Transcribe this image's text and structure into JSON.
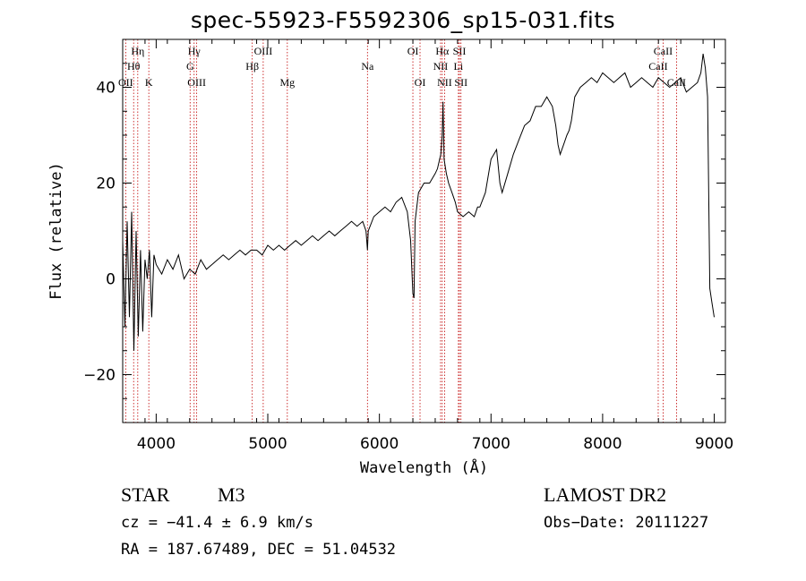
{
  "header": {
    "title": "spec-55923-F5592306_sp15-031.fits"
  },
  "info": {
    "obj_class": "STAR",
    "obj_subclass": "M3",
    "survey": "LAMOST  DR2",
    "cz": "cz = −41.4 ± 6.9 km/s",
    "obs_date": "Obs−Date: 20111227",
    "radec": "RA = 187.67489, DEC =  51.04532"
  },
  "chart_data": {
    "type": "line",
    "title": "spec-55923-F5592306_sp15-031.fits",
    "xlabel": "Wavelength (Å)",
    "ylabel": "Flux (relative)",
    "xlim": [
      3700,
      9100
    ],
    "ylim": [
      -30,
      50
    ],
    "xticks": [
      4000,
      5000,
      6000,
      7000,
      8000,
      9000
    ],
    "yticks": [
      -20,
      0,
      20,
      40
    ],
    "line_color": "#000000",
    "marker_color": "#c00000",
    "series": [
      {
        "x": [
          3700,
          3720,
          3740,
          3760,
          3780,
          3800,
          3820,
          3840,
          3860,
          3880,
          3900,
          3920,
          3940,
          3960,
          3980,
          4000,
          4050,
          4100,
          4150,
          4200,
          4250,
          4300,
          4350,
          4400,
          4450,
          4500,
          4550,
          4600,
          4650,
          4700,
          4750,
          4800,
          4850,
          4900,
          4950,
          5000,
          5050,
          5100,
          5150,
          5200,
          5250,
          5300,
          5350,
          5400,
          5450,
          5500,
          5550,
          5600,
          5650,
          5700,
          5750,
          5800,
          5850,
          5880,
          5893,
          5900,
          5950,
          6000,
          6050,
          6100,
          6150,
          6200,
          6250,
          6280,
          6300,
          6310,
          6320,
          6350,
          6400,
          6450,
          6500,
          6520,
          6540,
          6550,
          6563,
          6570,
          6580,
          6600,
          6620,
          6650,
          6680,
          6700,
          6750,
          6800,
          6850,
          6880,
          6900,
          6950,
          7000,
          7050,
          7080,
          7100,
          7150,
          7200,
          7250,
          7300,
          7350,
          7400,
          7450,
          7500,
          7550,
          7580,
          7600,
          7620,
          7650,
          7680,
          7700,
          7720,
          7750,
          7800,
          7850,
          7900,
          7950,
          8000,
          8050,
          8100,
          8150,
          8200,
          8250,
          8300,
          8350,
          8400,
          8450,
          8500,
          8550,
          8600,
          8650,
          8700,
          8750,
          8800,
          8850,
          8880,
          8900,
          8920,
          8940,
          8960,
          8980,
          9000
        ],
        "y": [
          8,
          -10,
          12,
          -8,
          14,
          -15,
          10,
          -12,
          6,
          -11,
          4,
          0,
          6,
          -8,
          5,
          3,
          1,
          4,
          2,
          5,
          0,
          2,
          1,
          4,
          2,
          3,
          4,
          5,
          4,
          5,
          6,
          5,
          6,
          6,
          5,
          7,
          6,
          7,
          6,
          7,
          8,
          7,
          8,
          9,
          8,
          9,
          10,
          9,
          10,
          11,
          12,
          11,
          12,
          10,
          6,
          10,
          13,
          14,
          15,
          14,
          16,
          17,
          14,
          8,
          -3,
          -4,
          12,
          18,
          20,
          20,
          22,
          23,
          25,
          26,
          30,
          37,
          25,
          22,
          20,
          18,
          16,
          14,
          13,
          14,
          13,
          15,
          15,
          18,
          25,
          27,
          20,
          18,
          22,
          26,
          29,
          32,
          33,
          36,
          36,
          38,
          36,
          32,
          28,
          26,
          28,
          30,
          31,
          33,
          38,
          40,
          41,
          42,
          41,
          43,
          42,
          41,
          42,
          43,
          40,
          41,
          42,
          41,
          40,
          42,
          41,
          40,
          41,
          42,
          39,
          40,
          41,
          43,
          47,
          44,
          38,
          -2,
          -5,
          -8
        ]
      }
    ],
    "line_markers": [
      {
        "name": "OII",
        "x": 3727,
        "row": 3
      },
      {
        "name": "Hθ",
        "x": 3798,
        "row": 2
      },
      {
        "name": "Hη",
        "x": 3835,
        "row": 1
      },
      {
        "name": "K",
        "x": 3934,
        "row": 3
      },
      {
        "name": "Hγ",
        "x": 4340,
        "row": 1
      },
      {
        "name": "G",
        "x": 4304,
        "row": 2
      },
      {
        "name": "OIII",
        "x": 4363,
        "row": 3
      },
      {
        "name": "Hβ",
        "x": 4861,
        "row": 2
      },
      {
        "name": "OIII",
        "x": 4959,
        "row": 1
      },
      {
        "name": "Mg",
        "x": 5175,
        "row": 3
      },
      {
        "name": "Na",
        "x": 5893,
        "row": 2
      },
      {
        "name": "OI",
        "x": 6300,
        "row": 1
      },
      {
        "name": "OI",
        "x": 6364,
        "row": 3
      },
      {
        "name": "Hα",
        "x": 6563,
        "row": 1
      },
      {
        "name": "NII",
        "x": 6548,
        "row": 2
      },
      {
        "name": "NII",
        "x": 6584,
        "row": 3
      },
      {
        "name": "SII",
        "x": 6717,
        "row": 1
      },
      {
        "name": "Li",
        "x": 6708,
        "row": 2
      },
      {
        "name": "SII",
        "x": 6731,
        "row": 3
      },
      {
        "name": "CaII",
        "x": 8542,
        "row": 1
      },
      {
        "name": "CaII",
        "x": 8498,
        "row": 2
      },
      {
        "name": "CaII",
        "x": 8662,
        "row": 3
      }
    ]
  }
}
